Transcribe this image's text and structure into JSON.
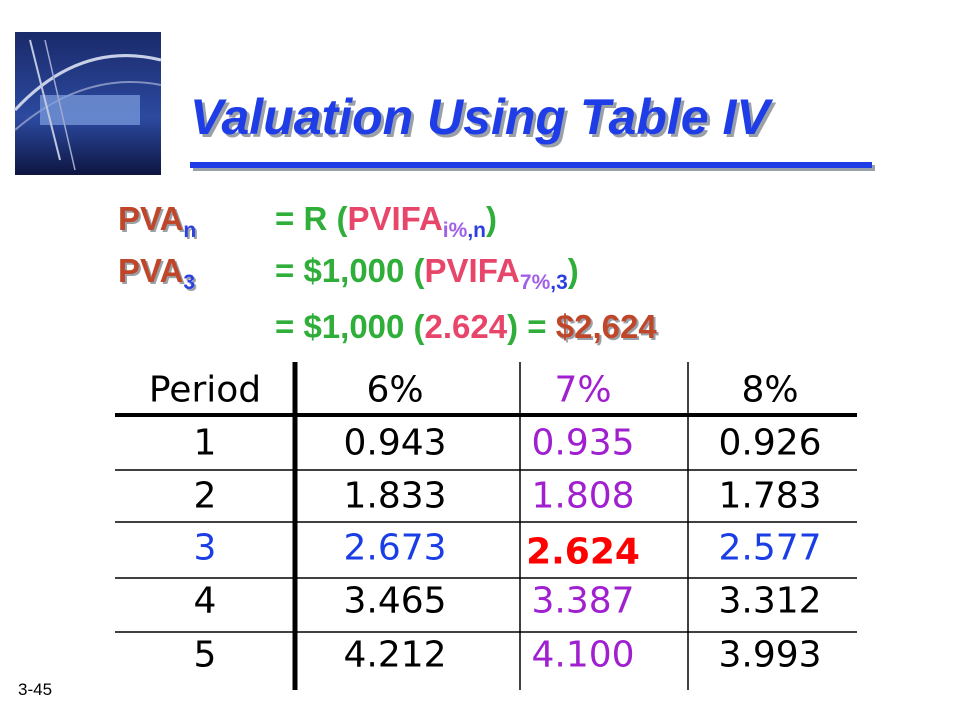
{
  "title": "Valuation Using Table IV",
  "formula": [
    [
      "PVA",
      "n",
      "= R (",
      "PVIFA",
      "i%",
      ",n",
      ")"
    ],
    [
      "PVA",
      "3",
      "= $1,000 (",
      "PVIFA",
      "7%",
      ",3",
      ")"
    ],
    [
      "= $1,000 (",
      "2.624",
      ") = ",
      "$2,624"
    ]
  ],
  "table": {
    "header": [
      "Period",
      "6%",
      "7%",
      "8%"
    ],
    "rows": [
      [
        "1",
        "0.943",
        "0.935",
        "0.926"
      ],
      [
        "2",
        "1.833",
        "1.808",
        "1.783"
      ],
      [
        "3",
        "2.673",
        "2.624",
        "2.577"
      ],
      [
        "4",
        "3.465",
        "3.387",
        "3.312"
      ],
      [
        "5",
        "4.212",
        "4.100",
        "3.993"
      ]
    ]
  },
  "footer": "3-45"
}
